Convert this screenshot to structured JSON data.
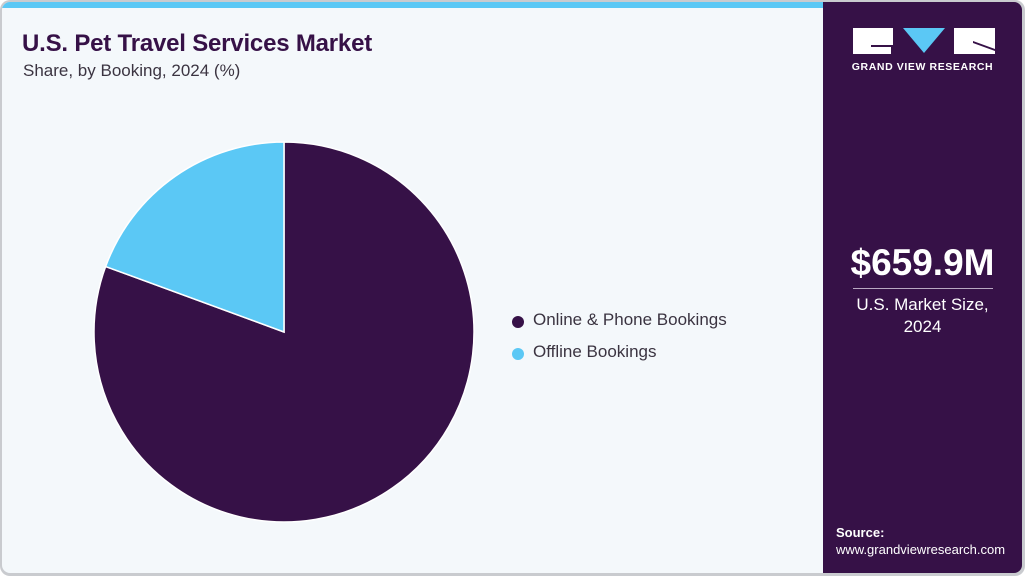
{
  "header": {
    "title": "U.S. Pet Travel Services Market",
    "subtitle": "Share, by Booking, 2024 (%)"
  },
  "colors": {
    "accent_strip": "#5bc8f5",
    "primary": "#361147",
    "secondary": "#5bc8f5",
    "background": "#f4f8fb"
  },
  "legend": {
    "items": [
      {
        "label": "Online & Phone Bookings",
        "color": "#361147"
      },
      {
        "label": "Offline Bookings",
        "color": "#5bc8f5"
      }
    ]
  },
  "sidebar": {
    "logo_text": "GRAND VIEW RESEARCH",
    "market_value": "$659.9M",
    "market_label_line1": "U.S. Market Size,",
    "market_label_line2": "2024",
    "source_label": "Source:",
    "source_url": "www.grandviewresearch.com"
  },
  "chart_data": {
    "type": "pie",
    "title": "U.S. Pet Travel Services Market",
    "subtitle": "Share, by Booking, 2024 (%)",
    "categories": [
      "Online & Phone Bookings",
      "Offline Bookings"
    ],
    "values": [
      80.6,
      19.4
    ],
    "colors": [
      "#361147",
      "#5bc8f5"
    ],
    "start_angle_deg": 0,
    "direction": "clockwise",
    "legend_position": "right",
    "annotation": "$659.9M U.S. Market Size, 2024"
  }
}
